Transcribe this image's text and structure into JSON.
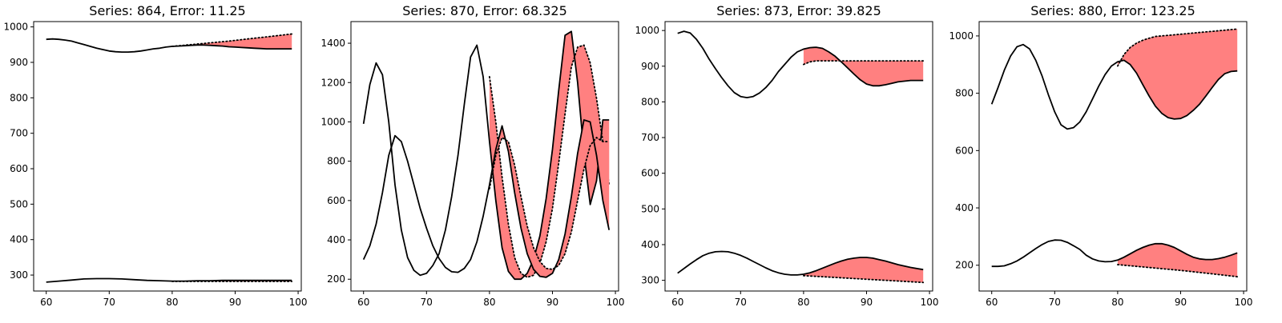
{
  "colors": {
    "error_fill": "#ff8080",
    "line": "#000000"
  },
  "chart_data": [
    {
      "type": "line",
      "title": "Series: 864, Error: 11.25",
      "xlim": [
        58,
        100.5
      ],
      "ylim": [
        255,
        1015
      ],
      "xticks": [
        60,
        70,
        80,
        90,
        100
      ],
      "yticks": [
        300,
        400,
        500,
        600,
        700,
        800,
        900,
        1000
      ],
      "series": [
        {
          "x": [
            60,
            61,
            62,
            63,
            64,
            65,
            66,
            67,
            68,
            69,
            70,
            71,
            72,
            73,
            74,
            75,
            76,
            77,
            78,
            79,
            80,
            81,
            82,
            83,
            84,
            85,
            86,
            87,
            88,
            89,
            90,
            91,
            92,
            93,
            94,
            95,
            96,
            97,
            98,
            99
          ],
          "values": [
            965,
            966,
            965,
            963,
            960,
            955,
            950,
            945,
            940,
            936,
            932,
            930,
            929,
            929,
            930,
            932,
            935,
            938,
            940,
            943,
            945,
            946,
            947,
            948,
            949,
            949,
            948,
            947,
            946,
            944,
            943,
            942,
            941,
            940,
            939,
            938,
            938,
            938,
            938,
            938
          ],
          "forecast": {
            "x": [
              80,
              83,
              86,
              89,
              92,
              95,
              97,
              99
            ],
            "values": [
              945,
              950,
              955,
              960,
              966,
              972,
              976,
              980
            ]
          }
        },
        {
          "x": [
            60,
            62,
            64,
            66,
            68,
            70,
            72,
            74,
            76,
            78,
            80,
            82,
            84,
            86,
            88,
            90,
            92,
            94,
            96,
            98,
            99
          ],
          "values": [
            280,
            283,
            286,
            289,
            290,
            290,
            289,
            287,
            285,
            284,
            283,
            283,
            284,
            284,
            285,
            285,
            285,
            285,
            285,
            285,
            285
          ],
          "forecast": {
            "x": [
              80,
              85,
              90,
              95,
              99
            ],
            "values": [
              282,
              282,
              282,
              282,
              282
            ]
          }
        }
      ]
    },
    {
      "type": "line",
      "title": "Series: 870, Error: 68.325",
      "xlim": [
        58,
        100.5
      ],
      "ylim": [
        140,
        1510
      ],
      "xticks": [
        60,
        70,
        80,
        90,
        100
      ],
      "yticks": [
        200,
        400,
        600,
        800,
        1000,
        1200,
        1400
      ],
      "series": [
        {
          "x": [
            60,
            61,
            62,
            63,
            64,
            65,
            66,
            67,
            68,
            69,
            70,
            71,
            72,
            73,
            74,
            75,
            76,
            77,
            78,
            79,
            80,
            81,
            82,
            83,
            84,
            85,
            86,
            87,
            88,
            89,
            90,
            91,
            92,
            93,
            94,
            95,
            96,
            97,
            98,
            99
          ],
          "values": [
            990,
            1190,
            1300,
            1240,
            1000,
            680,
            450,
            310,
            245,
            220,
            230,
            270,
            330,
            450,
            620,
            830,
            1090,
            1330,
            1390,
            1230,
            900,
            600,
            360,
            240,
            200,
            200,
            230,
            300,
            420,
            610,
            860,
            1160,
            1440,
            1460,
            1200,
            840,
            580,
            700,
            1010,
            1010
          ],
          "forecast": {
            "x": [
              80,
              81,
              82,
              83,
              84,
              85,
              86,
              87,
              88,
              89,
              90,
              91,
              92,
              93,
              94,
              95,
              96,
              97,
              98,
              99
            ],
            "values": [
              1230,
              1000,
              720,
              480,
              310,
              230,
              210,
              220,
              280,
              390,
              560,
              790,
              1040,
              1280,
              1380,
              1390,
              1300,
              1120,
              900,
              680
            ]
          }
        },
        {
          "x": [
            60,
            61,
            62,
            63,
            64,
            65,
            66,
            67,
            68,
            69,
            70,
            71,
            72,
            73,
            74,
            75,
            76,
            77,
            78,
            79,
            80,
            81,
            82,
            83,
            84,
            85,
            86,
            87,
            88,
            89,
            90,
            91,
            92,
            93,
            94,
            95,
            96,
            97,
            98,
            99
          ],
          "values": [
            300,
            370,
            480,
            640,
            830,
            930,
            900,
            800,
            680,
            560,
            460,
            370,
            305,
            260,
            238,
            235,
            255,
            300,
            390,
            520,
            680,
            860,
            980,
            850,
            640,
            460,
            330,
            250,
            215,
            210,
            230,
            300,
            430,
            620,
            840,
            1010,
            1000,
            830,
            600,
            450
          ],
          "forecast": {
            "x": [
              80,
              81,
              82,
              83,
              84,
              85,
              86,
              87,
              88,
              89,
              90,
              91,
              92,
              93,
              94,
              95,
              96,
              97,
              98,
              99
            ],
            "values": [
              660,
              830,
              920,
              900,
              780,
              620,
              470,
              360,
              290,
              255,
              250,
              270,
              330,
              440,
              600,
              760,
              880,
              920,
              900,
              900
            ]
          }
        }
      ]
    },
    {
      "type": "line",
      "title": "Series: 873, Error: 39.825",
      "xlim": [
        58,
        100.5
      ],
      "ylim": [
        270,
        1025
      ],
      "xticks": [
        60,
        70,
        80,
        90,
        100
      ],
      "yticks": [
        300,
        400,
        500,
        600,
        700,
        800,
        900,
        1000
      ],
      "series": [
        {
          "x": [
            60,
            61,
            62,
            63,
            64,
            65,
            66,
            67,
            68,
            69,
            70,
            71,
            72,
            73,
            74,
            75,
            76,
            77,
            78,
            79,
            80,
            81,
            82,
            83,
            84,
            85,
            86,
            87,
            88,
            89,
            90,
            91,
            92,
            93,
            94,
            95,
            96,
            97,
            98,
            99
          ],
          "values": [
            992,
            998,
            993,
            975,
            950,
            920,
            893,
            868,
            845,
            826,
            815,
            812,
            815,
            825,
            840,
            860,
            885,
            905,
            925,
            940,
            948,
            952,
            953,
            950,
            940,
            928,
            912,
            895,
            878,
            862,
            850,
            845,
            845,
            848,
            852,
            856,
            858,
            860,
            860,
            860
          ],
          "forecast": {
            "x": [
              80,
              81,
              82,
              83,
              84,
              85,
              90,
              95,
              99
            ],
            "values": [
              905,
              912,
              915,
              915,
              915,
              915,
              915,
              915,
              915
            ]
          }
        },
        {
          "x": [
            60,
            61,
            62,
            63,
            64,
            65,
            66,
            67,
            68,
            69,
            70,
            71,
            72,
            73,
            74,
            75,
            76,
            77,
            78,
            79,
            80,
            81,
            82,
            83,
            84,
            85,
            86,
            87,
            88,
            89,
            90,
            91,
            92,
            93,
            94,
            95,
            96,
            97,
            98,
            99
          ],
          "values": [
            320,
            333,
            346,
            358,
            369,
            376,
            380,
            381,
            380,
            376,
            370,
            362,
            353,
            344,
            335,
            327,
            321,
            317,
            315,
            315,
            317,
            321,
            327,
            334,
            341,
            348,
            354,
            359,
            362,
            364,
            364,
            362,
            358,
            354,
            349,
            344,
            340,
            336,
            333,
            330
          ],
          "forecast": {
            "x": [
              80,
              85,
              90,
              95,
              99
            ],
            "values": [
              313,
              308,
              303,
              298,
              294
            ]
          }
        }
      ]
    },
    {
      "type": "line",
      "title": "Series: 880, Error: 123.25",
      "xlim": [
        58,
        100.5
      ],
      "ylim": [
        110,
        1050
      ],
      "xticks": [
        60,
        70,
        80,
        90,
        100
      ],
      "yticks": [
        200,
        400,
        600,
        800,
        1000
      ],
      "series": [
        {
          "x": [
            60,
            61,
            62,
            63,
            64,
            65,
            66,
            67,
            68,
            69,
            70,
            71,
            72,
            73,
            74,
            75,
            76,
            77,
            78,
            79,
            80,
            81,
            82,
            83,
            84,
            85,
            86,
            87,
            88,
            89,
            90,
            91,
            92,
            93,
            94,
            95,
            96,
            97,
            98,
            99
          ],
          "values": [
            762,
            820,
            880,
            930,
            962,
            970,
            955,
            915,
            860,
            795,
            735,
            690,
            675,
            680,
            700,
            735,
            780,
            825,
            865,
            895,
            910,
            915,
            900,
            870,
            830,
            790,
            755,
            730,
            715,
            710,
            712,
            722,
            740,
            762,
            790,
            820,
            848,
            868,
            876,
            878
          ],
          "forecast": {
            "x": [
              80,
              81,
              82,
              83,
              84,
              85,
              86,
              87,
              88,
              90,
              92,
              94,
              96,
              98,
              99
            ],
            "values": [
              895,
              935,
              960,
              975,
              985,
              992,
              998,
              1000,
              1002,
              1006,
              1010,
              1014,
              1018,
              1022,
              1024
            ]
          }
        },
        {
          "x": [
            60,
            61,
            62,
            63,
            64,
            65,
            66,
            67,
            68,
            69,
            70,
            71,
            72,
            73,
            74,
            75,
            76,
            77,
            78,
            79,
            80,
            81,
            82,
            83,
            84,
            85,
            86,
            87,
            88,
            89,
            90,
            91,
            92,
            93,
            94,
            95,
            96,
            97,
            98,
            99
          ],
          "values": [
            196,
            196,
            198,
            205,
            215,
            228,
            243,
            258,
            272,
            283,
            288,
            287,
            280,
            268,
            255,
            235,
            222,
            215,
            212,
            213,
            218,
            228,
            240,
            252,
            262,
            270,
            275,
            275,
            270,
            262,
            250,
            238,
            228,
            222,
            220,
            220,
            223,
            228,
            235,
            243
          ],
          "forecast": {
            "x": [
              80,
              85,
              90,
              95,
              99
            ],
            "values": [
              202,
              192,
              182,
              170,
              160
            ]
          }
        }
      ]
    }
  ]
}
